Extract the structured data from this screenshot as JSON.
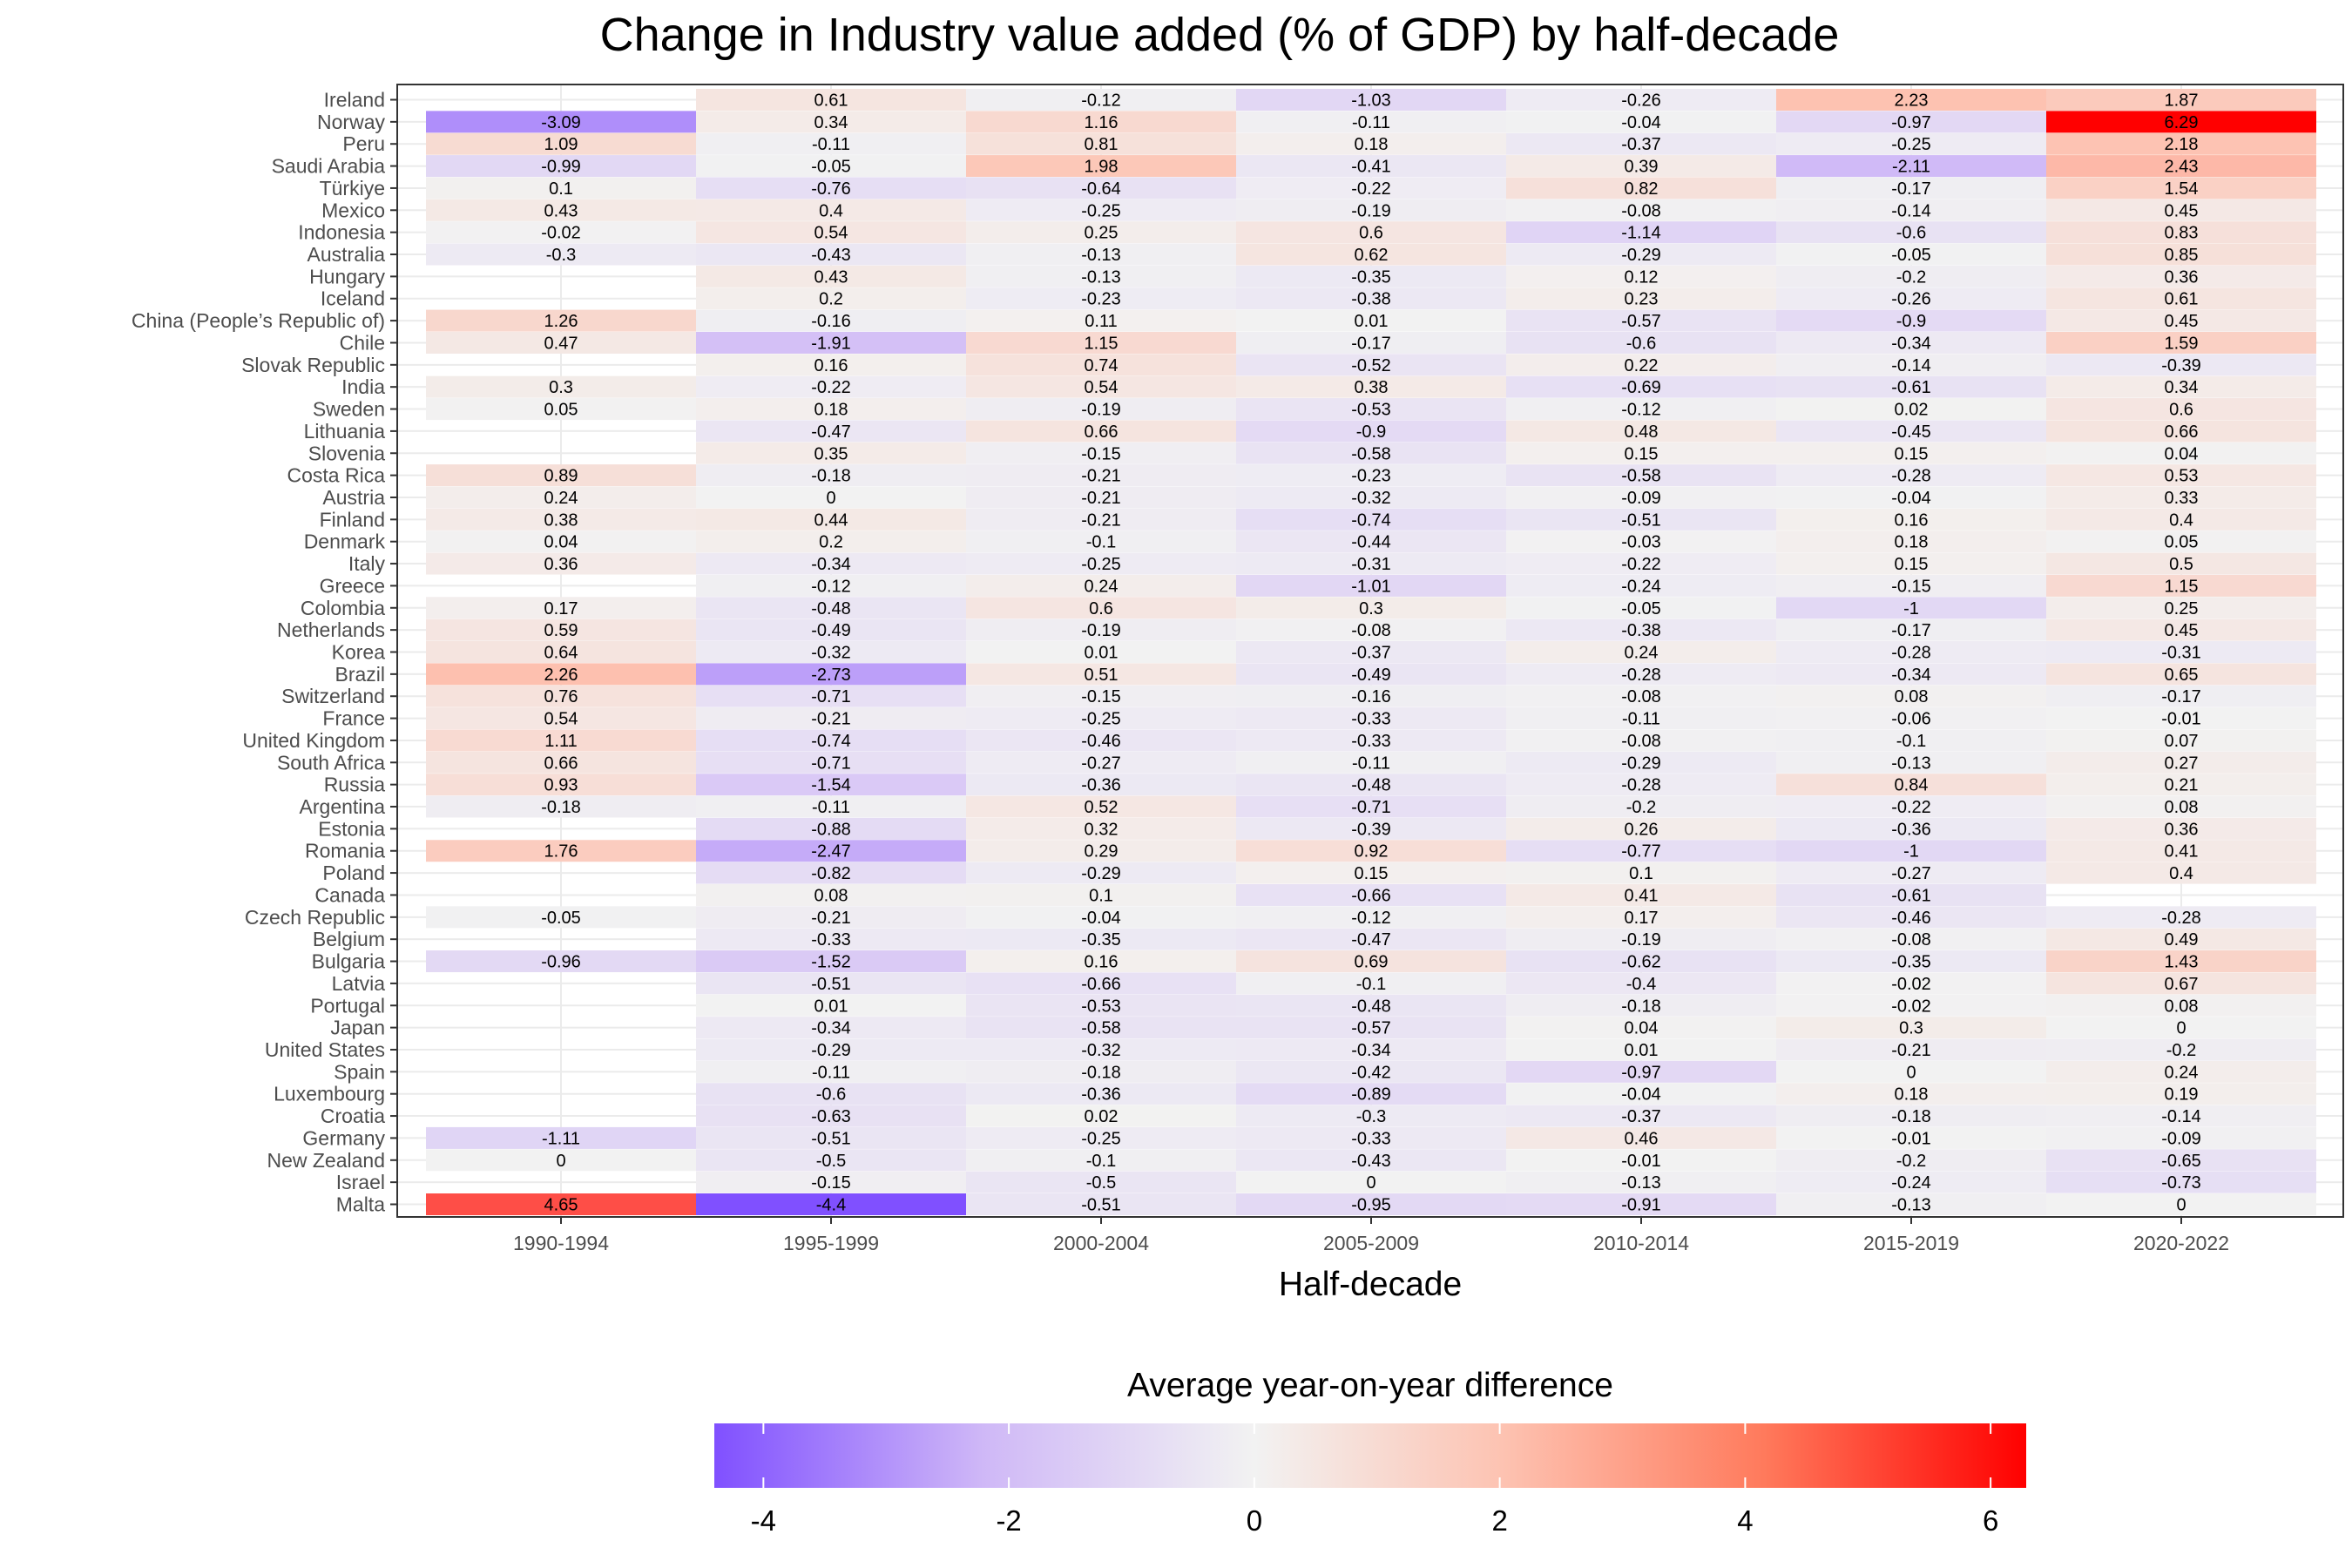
{
  "chart_data": {
    "type": "heatmap",
    "title": "Change in Industry value added (% of GDP) by half-decade",
    "xlabel": "Half-decade",
    "ylabel": "",
    "x": [
      "1990-1994",
      "1995-1999",
      "2000-2004",
      "2005-2009",
      "2010-2014",
      "2015-2019",
      "2020-2022"
    ],
    "y": [
      "Ireland",
      "Norway",
      "Peru",
      "Saudi Arabia",
      "Türkiye",
      "Mexico",
      "Indonesia",
      "Australia",
      "Hungary",
      "Iceland",
      "China (People’s Republic of)",
      "Chile",
      "Slovak Republic",
      "India",
      "Sweden",
      "Lithuania",
      "Slovenia",
      "Costa Rica",
      "Austria",
      "Finland",
      "Denmark",
      "Italy",
      "Greece",
      "Colombia",
      "Netherlands",
      "Korea",
      "Brazil",
      "Switzerland",
      "France",
      "United Kingdom",
      "South Africa",
      "Russia",
      "Argentina",
      "Estonia",
      "Romania",
      "Poland",
      "Canada",
      "Czech Republic",
      "Belgium",
      "Bulgaria",
      "Latvia",
      "Portugal",
      "Japan",
      "United States",
      "Spain",
      "Luxembourg",
      "Croatia",
      "Germany",
      "New Zealand",
      "Israel",
      "Malta"
    ],
    "values": [
      [
        null,
        0.61,
        -0.12,
        -1.03,
        -0.26,
        2.23,
        1.87
      ],
      [
        -3.09,
        0.34,
        1.16,
        -0.11,
        -0.04,
        -0.97,
        6.29
      ],
      [
        1.09,
        -0.11,
        0.81,
        0.18,
        -0.37,
        -0.25,
        2.18
      ],
      [
        -0.99,
        -0.05,
        1.98,
        -0.41,
        0.39,
        -2.11,
        2.43
      ],
      [
        0.1,
        -0.76,
        -0.64,
        -0.22,
        0.82,
        -0.17,
        1.54
      ],
      [
        0.43,
        0.4,
        -0.25,
        -0.19,
        -0.08,
        -0.14,
        0.45
      ],
      [
        -0.02,
        0.54,
        0.25,
        0.6,
        -1.14,
        -0.6,
        0.83
      ],
      [
        -0.3,
        -0.43,
        -0.13,
        0.62,
        -0.29,
        -0.05,
        0.85
      ],
      [
        null,
        0.43,
        -0.13,
        -0.35,
        0.12,
        -0.2,
        0.36
      ],
      [
        null,
        0.2,
        -0.23,
        -0.38,
        0.23,
        -0.26,
        0.61
      ],
      [
        1.26,
        -0.16,
        0.11,
        0.01,
        -0.57,
        -0.9,
        0.45
      ],
      [
        0.47,
        -1.91,
        1.15,
        -0.17,
        -0.6,
        -0.34,
        1.59
      ],
      [
        null,
        0.16,
        0.74,
        -0.52,
        0.22,
        -0.14,
        -0.39
      ],
      [
        0.3,
        -0.22,
        0.54,
        0.38,
        -0.69,
        -0.61,
        0.34
      ],
      [
        0.05,
        0.18,
        -0.19,
        -0.53,
        -0.12,
        0.02,
        0.6
      ],
      [
        null,
        -0.47,
        0.66,
        -0.9,
        0.48,
        -0.45,
        0.66
      ],
      [
        null,
        0.35,
        -0.15,
        -0.58,
        0.15,
        0.15,
        0.04
      ],
      [
        0.89,
        -0.18,
        -0.21,
        -0.23,
        -0.58,
        -0.28,
        0.53
      ],
      [
        0.24,
        0,
        -0.21,
        -0.32,
        -0.09,
        -0.04,
        0.33
      ],
      [
        0.38,
        0.44,
        -0.21,
        -0.74,
        -0.51,
        0.16,
        0.4
      ],
      [
        0.04,
        0.2,
        -0.1,
        -0.44,
        -0.03,
        0.18,
        0.05
      ],
      [
        0.36,
        -0.34,
        -0.25,
        -0.31,
        -0.22,
        0.15,
        0.5
      ],
      [
        null,
        -0.12,
        0.24,
        -1.01,
        -0.24,
        -0.15,
        1.15
      ],
      [
        0.17,
        -0.48,
        0.6,
        0.3,
        -0.05,
        -1,
        0.25
      ],
      [
        0.59,
        -0.49,
        -0.19,
        -0.08,
        -0.38,
        -0.17,
        0.45
      ],
      [
        0.64,
        -0.32,
        0.01,
        -0.37,
        0.24,
        -0.28,
        -0.31
      ],
      [
        2.26,
        -2.73,
        0.51,
        -0.49,
        -0.28,
        -0.34,
        0.65
      ],
      [
        0.76,
        -0.71,
        -0.15,
        -0.16,
        -0.08,
        0.08,
        -0.17
      ],
      [
        0.54,
        -0.21,
        -0.25,
        -0.33,
        -0.11,
        -0.06,
        -0.01
      ],
      [
        1.11,
        -0.74,
        -0.46,
        -0.33,
        -0.08,
        -0.1,
        0.07
      ],
      [
        0.66,
        -0.71,
        -0.27,
        -0.11,
        -0.29,
        -0.13,
        0.27
      ],
      [
        0.93,
        -1.54,
        -0.36,
        -0.48,
        -0.28,
        0.84,
        0.21
      ],
      [
        -0.18,
        -0.11,
        0.52,
        -0.71,
        -0.2,
        -0.22,
        0.08
      ],
      [
        null,
        -0.88,
        0.32,
        -0.39,
        0.26,
        -0.36,
        0.36
      ],
      [
        1.76,
        -2.47,
        0.29,
        0.92,
        -0.77,
        -1,
        0.41
      ],
      [
        null,
        -0.82,
        -0.29,
        0.15,
        0.1,
        -0.27,
        0.4
      ],
      [
        null,
        0.08,
        0.1,
        -0.66,
        0.41,
        -0.61,
        null
      ],
      [
        -0.05,
        -0.21,
        -0.04,
        -0.12,
        0.17,
        -0.46,
        -0.28
      ],
      [
        null,
        -0.33,
        -0.35,
        -0.47,
        -0.19,
        -0.08,
        0.49
      ],
      [
        -0.96,
        -1.52,
        0.16,
        0.69,
        -0.62,
        -0.35,
        1.43
      ],
      [
        null,
        -0.51,
        -0.66,
        -0.1,
        -0.4,
        -0.02,
        0.67
      ],
      [
        null,
        0.01,
        -0.53,
        -0.48,
        -0.18,
        -0.02,
        0.08
      ],
      [
        null,
        -0.34,
        -0.58,
        -0.57,
        0.04,
        0.3,
        0
      ],
      [
        null,
        -0.29,
        -0.32,
        -0.34,
        0.01,
        -0.21,
        -0.2
      ],
      [
        null,
        -0.11,
        -0.18,
        -0.42,
        -0.97,
        0,
        0.24
      ],
      [
        null,
        -0.6,
        -0.36,
        -0.89,
        -0.04,
        0.18,
        0.19
      ],
      [
        null,
        -0.63,
        0.02,
        -0.3,
        -0.37,
        -0.18,
        -0.14
      ],
      [
        -1.11,
        -0.51,
        -0.25,
        -0.33,
        0.46,
        -0.01,
        -0.09
      ],
      [
        0,
        -0.5,
        -0.1,
        -0.43,
        -0.01,
        -0.2,
        -0.65
      ],
      [
        null,
        -0.15,
        -0.5,
        0,
        -0.13,
        -0.24,
        -0.73
      ],
      [
        4.65,
        -4.4,
        -0.51,
        -0.95,
        -0.91,
        -0.13,
        0
      ]
    ],
    "legend": {
      "title": "Average year-on-year difference",
      "position": "bottom",
      "ticks": [
        -4,
        -2,
        0,
        2,
        4,
        6
      ],
      "range": [
        -4.4,
        6.29
      ]
    },
    "colors": {
      "low": "#8050ff",
      "mid": "#f2f2f2",
      "high": "#ff0000",
      "grid": "#ebebeb",
      "border": "#333333"
    },
    "grid": true
  }
}
